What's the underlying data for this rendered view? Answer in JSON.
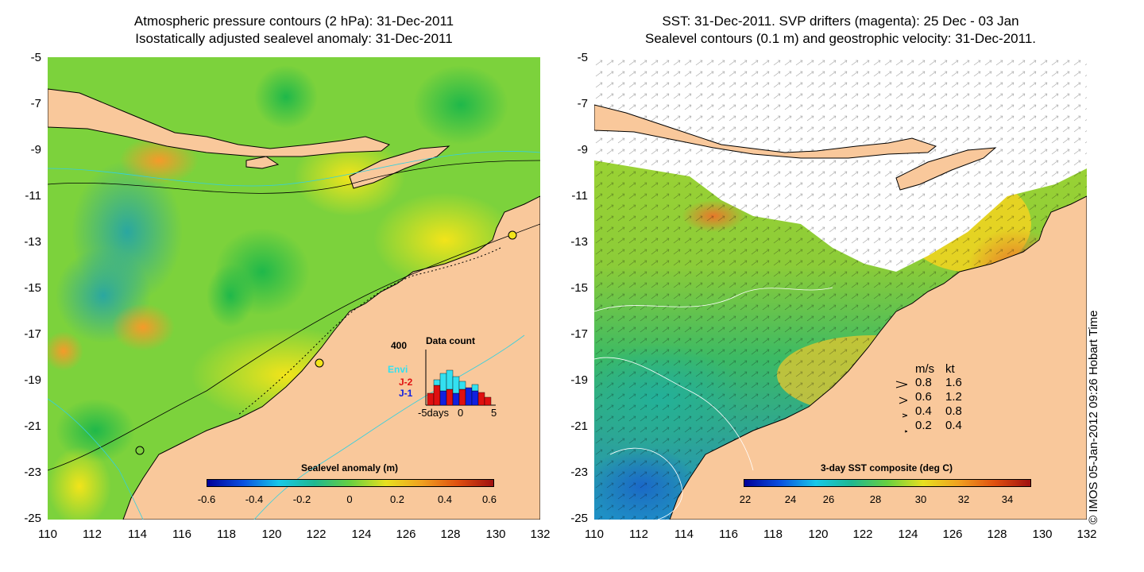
{
  "left": {
    "title_line1": "Atmospheric pressure contours (2 hPa): 31-Dec-2011",
    "title_line2": "Isostatically adjusted sealevel anomaly: 31-Dec-2011",
    "colorbar_title": "Sealevel anomaly (m)",
    "colorbar_ticks": [
      "-0.6",
      "-0.4",
      "-0.2",
      "0",
      "0.2",
      "0.4",
      "0.6"
    ],
    "data_count": {
      "title": "Data count",
      "ymax_label": "400",
      "x_labels": [
        "-5days",
        "0",
        "5"
      ],
      "series": [
        "Envi",
        "J-2",
        "J-1"
      ],
      "series_colors": [
        "#33e0f0",
        "#e01010",
        "#1020e0"
      ]
    }
  },
  "right": {
    "title_line1": "SST: 31-Dec-2011. SVP drifters (magenta): 25 Dec - 03 Jan",
    "title_line2": "Sealevel contours (0.1 m) and geostrophic velocity: 31-Dec-2011.",
    "colorbar_title": "3-day SST composite (deg C)",
    "colorbar_ticks": [
      "22",
      "24",
      "26",
      "28",
      "30",
      "32",
      "34"
    ],
    "velocity_legend": {
      "header_ms": "m/s",
      "header_kt": "kt",
      "rows": [
        {
          "ms": "0.8",
          "kt": "1.6"
        },
        {
          "ms": "0.6",
          "kt": "1.2"
        },
        {
          "ms": "0.4",
          "kt": "0.8"
        },
        {
          "ms": "0.2",
          "kt": "0.4"
        }
      ]
    }
  },
  "axes": {
    "lat_labels": [
      "-5",
      "-7",
      "-9",
      "-11",
      "-13",
      "-15",
      "-17",
      "-19",
      "-21",
      "-23",
      "-25"
    ],
    "lon_labels": [
      "110",
      "112",
      "114",
      "116",
      "118",
      "120",
      "122",
      "124",
      "126",
      "128",
      "130",
      "132"
    ]
  },
  "copyright": "© IMOS 05-Jan-2012 09:26 Hobart Time",
  "colors": {
    "land": "#f9c89b",
    "sealevel_low": "#0000a0",
    "sealevel_high": "#a01010",
    "sst_low": "#0000a0",
    "sst_high": "#a01010",
    "coast_contour": "#33d0e0"
  }
}
